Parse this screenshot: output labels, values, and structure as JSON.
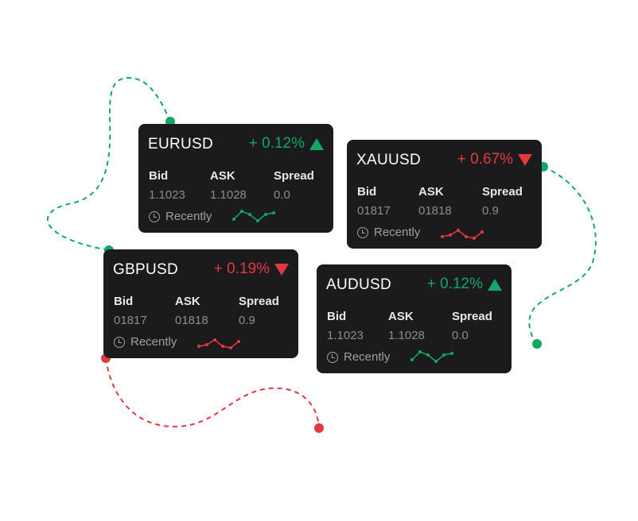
{
  "colors": {
    "up": "#11a866",
    "down": "#e03a3f",
    "card_bg": "#1b1b1d",
    "muted": "#8d8d8d"
  },
  "labels": {
    "bid": "Bid",
    "ask": "ASK",
    "spread": "Spread",
    "recently": "Recently"
  },
  "cards": [
    {
      "pair": "EURUSD",
      "change": "+ 0.12%",
      "direction": "up",
      "bid": "1.1023",
      "ask": "1.1028",
      "spread": "0.0",
      "icon": "triangle-up-icon",
      "spark": [
        6,
        16,
        12,
        4,
        12,
        14
      ]
    },
    {
      "pair": "XAUUSD",
      "change": "+ 0.67%",
      "direction": "down",
      "bid": "01817",
      "ask": "01818",
      "spread": "0.9",
      "icon": "triangle-down-icon",
      "spark": [
        4,
        6,
        12,
        4,
        2,
        10
      ]
    },
    {
      "pair": "GBPUSD",
      "change": "+ 0.19%",
      "direction": "down",
      "bid": "01817",
      "ask": "01818",
      "spread": "0.9",
      "icon": "triangle-down-icon",
      "spark": [
        4,
        6,
        12,
        4,
        2,
        10
      ]
    },
    {
      "pair": "AUDUSD",
      "change": "+ 0.12%",
      "direction": "up",
      "bid": "1.1023",
      "ask": "1.1028",
      "spread": "0.0",
      "icon": "triangle-up-icon",
      "spark": [
        6,
        16,
        12,
        4,
        12,
        14
      ]
    }
  ]
}
